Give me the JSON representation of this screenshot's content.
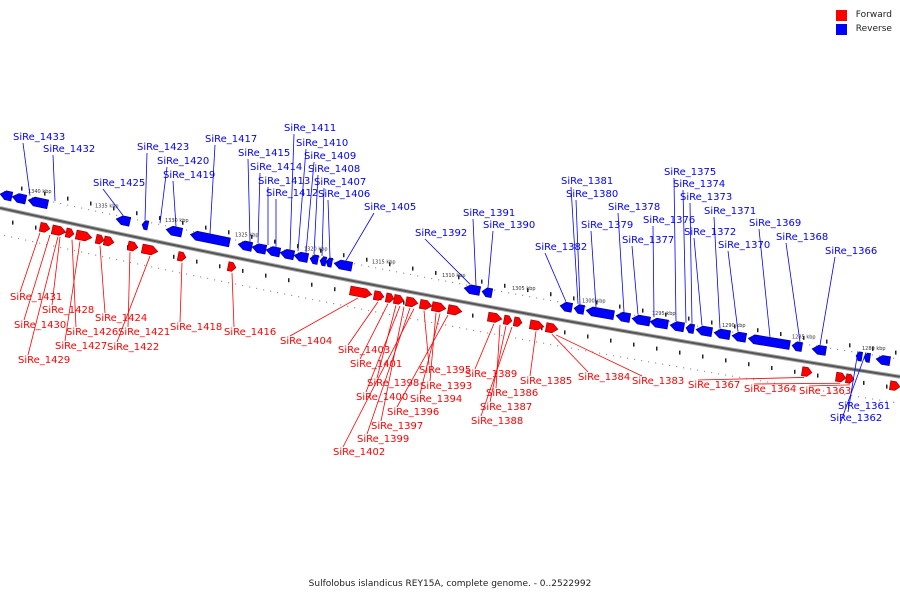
{
  "legend": {
    "forward_label": "Forward",
    "reverse_label": "Reverse",
    "forward_color": "#ff0000",
    "reverse_color": "#0000ff"
  },
  "caption": "Sulfolobus islandicus REY15A, complete genome. - 0..2522992",
  "ticks": [
    "1340 kbp",
    "1335 kbp",
    "1330 kbp",
    "1325 kbp",
    "1320 kbp",
    "1315 kbp",
    "1310 kbp",
    "1305 kbp",
    "1300 kbp",
    "1295 kbp",
    "1290 kbp",
    "1285 kbp",
    "1280 kbp"
  ],
  "genes_reverse": [
    "SiRe_1433",
    "SiRe_1432",
    "SiRe_1425",
    "SiRe_1423",
    "SiRe_1420",
    "SiRe_1419",
    "SiRe_1417",
    "SiRe_1415",
    "SiRe_1414",
    "SiRe_1413",
    "SiRe_1412",
    "SiRe_1411",
    "SiRe_1410",
    "SiRe_1409",
    "SiRe_1408",
    "SiRe_1407",
    "SiRe_1406",
    "SiRe_1405",
    "SiRe_1392",
    "SiRe_1391",
    "SiRe_1390",
    "SiRe_1382",
    "SiRe_1381",
    "SiRe_1380",
    "SiRe_1379",
    "SiRe_1378",
    "SiRe_1377",
    "SiRe_1376",
    "SiRe_1375",
    "SiRe_1374",
    "SiRe_1373",
    "SiRe_1372",
    "SiRe_1371",
    "SiRe_1370",
    "SiRe_1369",
    "SiRe_1368",
    "SiRe_1366",
    "SiRe_1361",
    "SiRe_1362"
  ],
  "genes_forward": [
    "SiRe_1431",
    "SiRe_1428",
    "SiRe_1430",
    "SiRe_1426",
    "SiRe_1427",
    "SiRe_1429",
    "SiRe_1424",
    "SiRe_1421",
    "SiRe_1422",
    "SiRe_1418",
    "SiRe_1416",
    "SiRe_1404",
    "SiRe_1403",
    "SiRe_1401",
    "SiRe_1398",
    "SiRe_1400",
    "SiRe_1397",
    "SiRe_1399",
    "SiRe_1402",
    "SiRe_1395",
    "SiRe_1393",
    "SiRe_1394",
    "SiRe_1396",
    "SiRe_1389",
    "SiRe_1386",
    "SiRe_1387",
    "SiRe_1388",
    "SiRe_1385",
    "SiRe_1384",
    "SiRe_1383",
    "SiRe_1367",
    "SiRe_1364",
    "SiRe_1363"
  ]
}
